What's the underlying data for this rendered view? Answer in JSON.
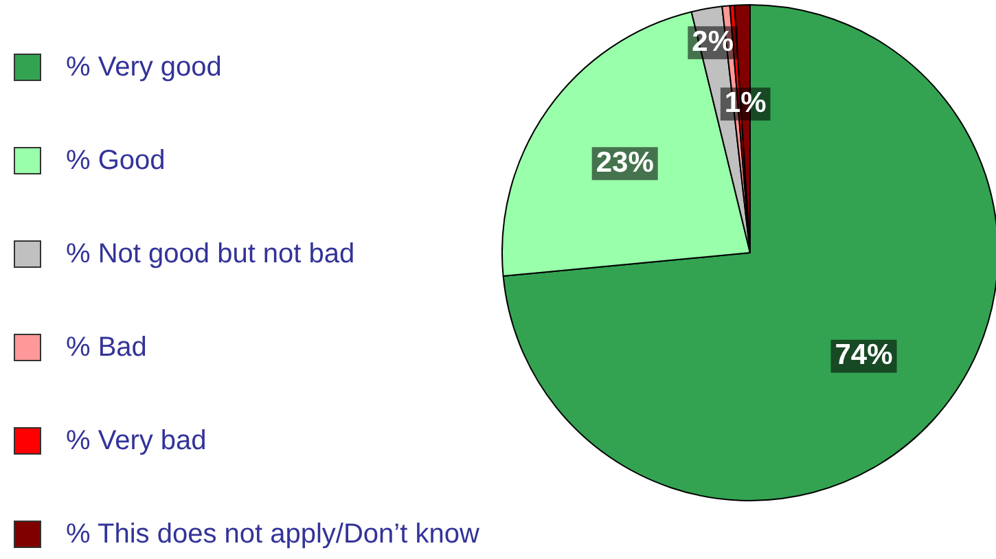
{
  "chart_data": {
    "type": "pie",
    "categories": [
      "% Very good",
      "% Good",
      "% Not good but not bad",
      "% Bad",
      "% Very bad",
      "% This does not apply/Don’t know"
    ],
    "values": [
      73.5,
      22.7,
      2,
      0.5,
      0.3,
      1
    ],
    "colors": [
      "#33a352",
      "#99ffaa",
      "#c0c0c0",
      "#ff9999",
      "#ff0000",
      "#800000"
    ],
    "value_labels": [
      "74%",
      "23%",
      "2%",
      null,
      null,
      "1%"
    ],
    "legend": "left"
  }
}
